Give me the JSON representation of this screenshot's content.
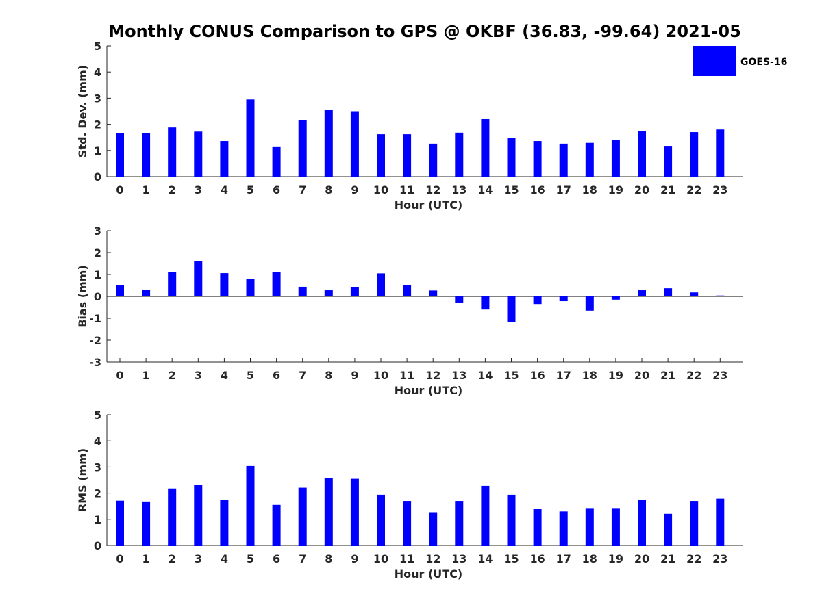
{
  "title": "Monthly CONUS Comparison to GPS @ OKBF (36.83, -99.64) 2021-05",
  "legend": {
    "label": "GOES-16",
    "color": "#0000ff"
  },
  "chart_data": [
    {
      "type": "bar",
      "title": "Monthly CONUS Comparison to GPS @ OKBF (36.83, -99.64) 2021-05",
      "xlabel": "Hour (UTC)",
      "ylabel": "Std. Dev. (mm)",
      "ylim": [
        0,
        5
      ],
      "yticks": [
        0,
        1,
        2,
        3,
        4,
        5
      ],
      "categories": [
        "0",
        "1",
        "2",
        "3",
        "4",
        "5",
        "6",
        "7",
        "8",
        "9",
        "10",
        "11",
        "12",
        "13",
        "14",
        "15",
        "16",
        "17",
        "18",
        "19",
        "20",
        "21",
        "22",
        "23"
      ],
      "series": [
        {
          "name": "GOES-16",
          "color": "#0000ff",
          "values": [
            1.65,
            1.65,
            1.88,
            1.72,
            1.36,
            2.95,
            1.13,
            2.17,
            2.56,
            2.5,
            1.62,
            1.62,
            1.26,
            1.68,
            2.2,
            1.49,
            1.36,
            1.26,
            1.29,
            1.41,
            1.73,
            1.15,
            1.7,
            1.8
          ]
        }
      ]
    },
    {
      "type": "bar",
      "xlabel": "Hour (UTC)",
      "ylabel": "Bias (mm)",
      "ylim": [
        -3,
        3
      ],
      "yticks": [
        -3,
        -2,
        -1,
        0,
        1,
        2,
        3
      ],
      "categories": [
        "0",
        "1",
        "2",
        "3",
        "4",
        "5",
        "6",
        "7",
        "8",
        "9",
        "10",
        "11",
        "12",
        "13",
        "14",
        "15",
        "16",
        "17",
        "18",
        "19",
        "20",
        "21",
        "22",
        "23"
      ],
      "series": [
        {
          "name": "GOES-16",
          "color": "#0000ff",
          "values": [
            0.5,
            0.3,
            1.12,
            1.6,
            1.06,
            0.8,
            1.1,
            0.44,
            0.28,
            0.43,
            1.05,
            0.5,
            0.27,
            -0.28,
            -0.6,
            -1.18,
            -0.35,
            -0.22,
            -0.65,
            -0.15,
            0.28,
            0.37,
            0.18,
            0.04
          ]
        }
      ]
    },
    {
      "type": "bar",
      "xlabel": "Hour (UTC)",
      "ylabel": "RMS (mm)",
      "ylim": [
        0,
        5
      ],
      "yticks": [
        0,
        1,
        2,
        3,
        4,
        5
      ],
      "categories": [
        "0",
        "1",
        "2",
        "3",
        "4",
        "5",
        "6",
        "7",
        "8",
        "9",
        "10",
        "11",
        "12",
        "13",
        "14",
        "15",
        "16",
        "17",
        "18",
        "19",
        "20",
        "21",
        "22",
        "23"
      ],
      "series": [
        {
          "name": "GOES-16",
          "color": "#0000ff",
          "values": [
            1.71,
            1.68,
            2.18,
            2.33,
            1.74,
            3.04,
            1.55,
            2.21,
            2.58,
            2.55,
            1.94,
            1.7,
            1.27,
            1.7,
            2.28,
            1.94,
            1.4,
            1.3,
            1.43,
            1.43,
            1.73,
            1.21,
            1.7,
            1.79
          ]
        }
      ]
    }
  ]
}
